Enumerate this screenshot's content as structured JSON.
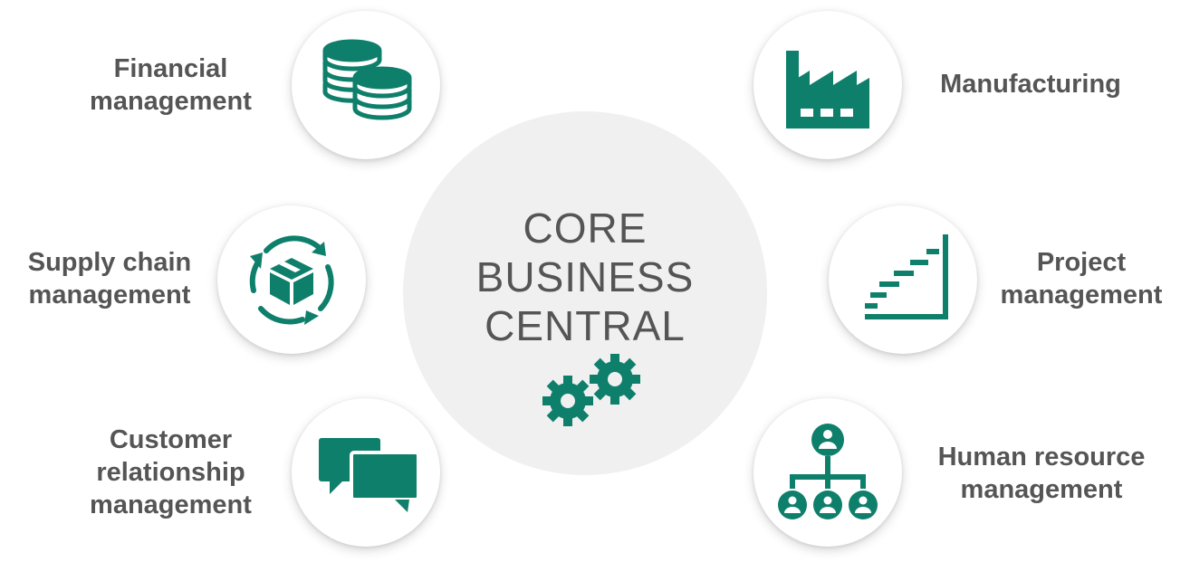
{
  "center": {
    "lines": [
      "CORE",
      "BUSINESS",
      "CENTRAL"
    ],
    "icon": "gears-icon"
  },
  "colors": {
    "accent": "#0e7f6b",
    "text": "#555555",
    "center_bg": "#f0f0f0"
  },
  "modules": {
    "financial": {
      "lines": [
        "Financial",
        "management"
      ],
      "icon": "coins-icon"
    },
    "supply_chain": {
      "lines": [
        "Supply chain",
        "management"
      ],
      "icon": "package-cycle-icon"
    },
    "crm": {
      "lines": [
        "Customer",
        "relationship",
        "management"
      ],
      "icon": "chat-bubbles-icon"
    },
    "manufacturing": {
      "lines": [
        "Manufacturing"
      ],
      "icon": "factory-icon"
    },
    "project": {
      "lines": [
        "Project",
        "management"
      ],
      "icon": "staircase-chart-icon"
    },
    "hr": {
      "lines": [
        "Human resource",
        "management"
      ],
      "icon": "org-chart-icon"
    }
  }
}
